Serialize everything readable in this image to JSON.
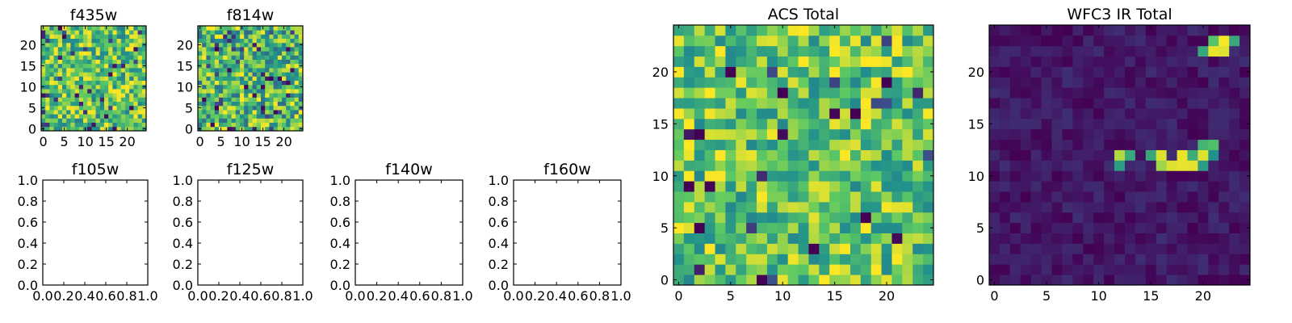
{
  "figure": {
    "colormap": "viridis",
    "colormap_stops": [
      "#440154",
      "#3b528b",
      "#21918c",
      "#5ec962",
      "#fde725"
    ]
  },
  "chart_data": [
    {
      "type": "heatmap",
      "title": "f435w",
      "grid_size": 25,
      "xlim": [
        -0.5,
        24.5
      ],
      "ylim": [
        -0.5,
        24.5
      ],
      "xticks": [
        0,
        5,
        10,
        15,
        20
      ],
      "yticks": [
        0,
        5,
        10,
        15,
        20
      ],
      "tick_labels_x": [
        "0",
        "5",
        "10",
        "15",
        "20"
      ],
      "tick_labels_y": [
        "0",
        "5",
        "10",
        "15",
        "20"
      ],
      "value_range": [
        0,
        1
      ],
      "pattern": "noise",
      "seed": 11,
      "noise": {
        "base": 0.72,
        "spread": 0.3,
        "dark_fraction": 0.05
      }
    },
    {
      "type": "heatmap",
      "title": "f814w",
      "grid_size": 25,
      "xlim": [
        -0.5,
        24.5
      ],
      "ylim": [
        -0.5,
        24.5
      ],
      "xticks": [
        0,
        5,
        10,
        15,
        20
      ],
      "yticks": [
        0,
        5,
        10,
        15,
        20
      ],
      "tick_labels_x": [
        "0",
        "5",
        "10",
        "15",
        "20"
      ],
      "tick_labels_y": [
        "0",
        "5",
        "10",
        "15",
        "20"
      ],
      "value_range": [
        0,
        1
      ],
      "pattern": "noise",
      "seed": 29,
      "noise": {
        "base": 0.68,
        "spread": 0.34,
        "dark_fraction": 0.06
      }
    },
    {
      "type": "empty",
      "title": "f105w",
      "xlim": [
        0,
        1
      ],
      "ylim": [
        0,
        1
      ],
      "xticks": [
        0,
        0.2,
        0.4,
        0.6,
        0.8,
        1.0
      ],
      "yticks": [
        0,
        0.2,
        0.4,
        0.6,
        0.8,
        1.0
      ],
      "tick_labels_x": [
        "0.0",
        "0.2",
        "0.4",
        "0.6",
        "0.8",
        "1.0"
      ],
      "tick_labels_y": [
        "0.0",
        "0.2",
        "0.4",
        "0.6",
        "0.8",
        "1.0"
      ]
    },
    {
      "type": "empty",
      "title": "f125w",
      "xlim": [
        0,
        1
      ],
      "ylim": [
        0,
        1
      ],
      "xticks": [
        0,
        0.2,
        0.4,
        0.6,
        0.8,
        1.0
      ],
      "yticks": [
        0,
        0.2,
        0.4,
        0.6,
        0.8,
        1.0
      ],
      "tick_labels_x": [
        "0.0",
        "0.2",
        "0.4",
        "0.6",
        "0.8",
        "1.0"
      ],
      "tick_labels_y": [
        "0.0",
        "0.2",
        "0.4",
        "0.6",
        "0.8",
        "1.0"
      ]
    },
    {
      "type": "empty",
      "title": "f140w",
      "xlim": [
        0,
        1
      ],
      "ylim": [
        0,
        1
      ],
      "xticks": [
        0,
        0.2,
        0.4,
        0.6,
        0.8,
        1.0
      ],
      "yticks": [
        0,
        0.2,
        0.4,
        0.6,
        0.8,
        1.0
      ],
      "tick_labels_x": [
        "0.0",
        "0.2",
        "0.4",
        "0.6",
        "0.8",
        "1.0"
      ],
      "tick_labels_y": [
        "0.0",
        "0.2",
        "0.4",
        "0.6",
        "0.8",
        "1.0"
      ]
    },
    {
      "type": "empty",
      "title": "f160w",
      "xlim": [
        0,
        1
      ],
      "ylim": [
        0,
        1
      ],
      "xticks": [
        0,
        0.2,
        0.4,
        0.6,
        0.8,
        1.0
      ],
      "yticks": [
        0,
        0.2,
        0.4,
        0.6,
        0.8,
        1.0
      ],
      "tick_labels_x": [
        "0.0",
        "0.2",
        "0.4",
        "0.6",
        "0.8",
        "1.0"
      ],
      "tick_labels_y": [
        "0.0",
        "0.2",
        "0.4",
        "0.6",
        "0.8",
        "1.0"
      ]
    },
    {
      "type": "heatmap",
      "title": "ACS Total",
      "grid_size": 25,
      "xlim": [
        -0.5,
        24.5
      ],
      "ylim": [
        -0.5,
        24.5
      ],
      "xticks": [
        0,
        5,
        10,
        15,
        20
      ],
      "yticks": [
        0,
        5,
        10,
        15,
        20
      ],
      "tick_labels_x": [
        "0",
        "5",
        "10",
        "15",
        "20"
      ],
      "tick_labels_y": [
        "0",
        "5",
        "10",
        "15",
        "20"
      ],
      "value_range": [
        0,
        1
      ],
      "pattern": "noise",
      "seed": 47,
      "noise": {
        "base": 0.74,
        "spread": 0.28,
        "dark_fraction": 0.03
      },
      "dark_cells": [
        [
          5,
          20
        ],
        [
          10,
          18
        ],
        [
          17,
          16
        ],
        [
          20,
          19
        ],
        [
          2,
          14
        ],
        [
          1,
          9
        ],
        [
          18,
          6
        ],
        [
          2,
          5
        ],
        [
          8,
          0
        ],
        [
          13,
          3
        ]
      ]
    },
    {
      "type": "heatmap",
      "title": "WFC3 IR Total",
      "grid_size": 25,
      "xlim": [
        -0.5,
        24.5
      ],
      "ylim": [
        -0.5,
        24.5
      ],
      "xticks": [
        0,
        5,
        10,
        15,
        20
      ],
      "yticks": [
        0,
        5,
        10,
        15,
        20
      ],
      "tick_labels_x": [
        "0",
        "5",
        "10",
        "15",
        "20"
      ],
      "tick_labels_y": [
        "0",
        "5",
        "10",
        "15",
        "20"
      ],
      "value_range": [
        0,
        1
      ],
      "pattern": "background",
      "seed": 83,
      "noise": {
        "base": 0.07,
        "spread": 0.07,
        "dark_fraction": 0
      },
      "bright_cells": [
        {
          "x": 21,
          "y": 23,
          "v": 0.72
        },
        {
          "x": 22,
          "y": 23,
          "v": 0.99
        },
        {
          "x": 23,
          "y": 23,
          "v": 0.6
        },
        {
          "x": 20,
          "y": 22,
          "v": 0.6
        },
        {
          "x": 21,
          "y": 22,
          "v": 0.97
        },
        {
          "x": 22,
          "y": 22,
          "v": 0.95
        },
        {
          "x": 12,
          "y": 12,
          "v": 0.88
        },
        {
          "x": 13,
          "y": 12,
          "v": 0.6
        },
        {
          "x": 15,
          "y": 12,
          "v": 0.6
        },
        {
          "x": 16,
          "y": 12,
          "v": 0.95
        },
        {
          "x": 18,
          "y": 12,
          "v": 0.97
        },
        {
          "x": 19,
          "y": 12,
          "v": 0.62
        },
        {
          "x": 20,
          "y": 12,
          "v": 0.95
        },
        {
          "x": 21,
          "y": 12,
          "v": 0.5
        },
        {
          "x": 20,
          "y": 13,
          "v": 0.65
        },
        {
          "x": 21,
          "y": 13,
          "v": 0.7
        },
        {
          "x": 12,
          "y": 11,
          "v": 0.55
        },
        {
          "x": 17,
          "y": 11,
          "v": 0.95
        },
        {
          "x": 18,
          "y": 11,
          "v": 0.97
        },
        {
          "x": 19,
          "y": 11,
          "v": 0.96
        },
        {
          "x": 20,
          "y": 11,
          "v": 0.55
        },
        {
          "x": 16,
          "y": 11,
          "v": 0.85
        }
      ]
    }
  ]
}
